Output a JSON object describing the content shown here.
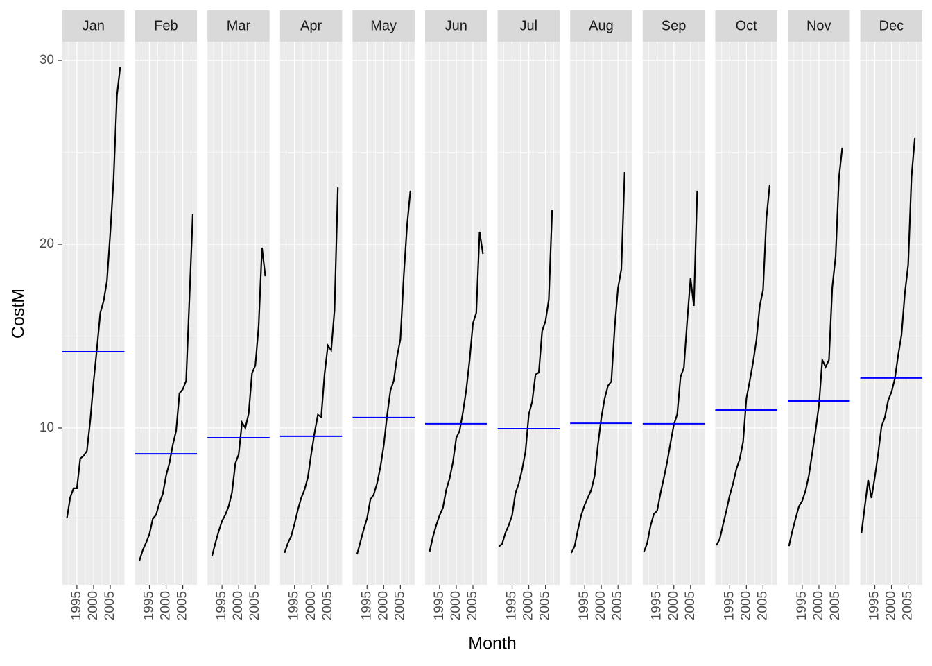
{
  "chart_data": {
    "type": "line",
    "xlabel": "Month",
    "ylabel": "CostM",
    "ylim": [
      1.47,
      31.02
    ],
    "yticks": [
      10,
      20,
      30
    ],
    "xlim": [
      1990.65,
      2009.26
    ],
    "xticks": [
      1995,
      2000,
      2005
    ],
    "grid": true,
    "color": "#000000",
    "mean_color": "#0000ff",
    "facets": [
      {
        "name": "Jan",
        "x": [
          1992,
          1993,
          1994,
          1995,
          1996,
          1997,
          1998,
          1999,
          2000,
          2001,
          2002,
          2003,
          2004,
          2005,
          2006,
          2007,
          2008
        ],
        "values": [
          5.09,
          6.23,
          6.72,
          6.72,
          8.34,
          8.49,
          8.75,
          10.42,
          12.53,
          14.34,
          16.26,
          16.91,
          18.0,
          20.6,
          23.55,
          28.08,
          29.66
        ],
        "mean": 14.15
      },
      {
        "name": "Feb",
        "x": [
          1992,
          1993,
          1994,
          1995,
          1996,
          1997,
          1998,
          1999,
          2000,
          2001,
          2002,
          2003,
          2004,
          2005,
          2006,
          2007,
          2008
        ],
        "values": [
          2.79,
          3.36,
          3.77,
          4.23,
          5.06,
          5.28,
          5.92,
          6.42,
          7.43,
          8.11,
          9.09,
          9.85,
          11.89,
          12.11,
          12.57,
          17.06,
          21.66
        ],
        "mean": 8.6
      },
      {
        "name": "Mar",
        "x": [
          1992,
          1993,
          1994,
          1995,
          1996,
          1997,
          1998,
          1999,
          2000,
          2001,
          2002,
          2003,
          2004,
          2005,
          2006,
          2007,
          2008
        ],
        "values": [
          3.02,
          3.74,
          4.38,
          4.94,
          5.28,
          5.74,
          6.49,
          8.08,
          8.57,
          10.3,
          10.0,
          10.79,
          12.98,
          13.4,
          15.55,
          19.81,
          18.26
        ],
        "mean": 9.47
      },
      {
        "name": "Apr",
        "x": [
          1992,
          1993,
          1994,
          1995,
          1996,
          1997,
          1998,
          1999,
          2000,
          2001,
          2002,
          2003,
          2004,
          2005,
          2006,
          2007,
          2008
        ],
        "values": [
          3.21,
          3.74,
          4.11,
          4.79,
          5.55,
          6.19,
          6.64,
          7.32,
          8.6,
          9.74,
          10.72,
          10.6,
          12.91,
          14.49,
          14.23,
          16.42,
          23.09
        ],
        "mean": 9.55
      },
      {
        "name": "May",
        "x": [
          1992,
          1993,
          1994,
          1995,
          1996,
          1997,
          1998,
          1999,
          2000,
          2001,
          2002,
          2003,
          2004,
          2005,
          2006,
          2007,
          2008
        ],
        "values": [
          3.13,
          3.81,
          4.49,
          5.09,
          6.11,
          6.38,
          6.98,
          7.89,
          9.06,
          10.68,
          12.04,
          12.57,
          13.89,
          14.83,
          18.26,
          21.02,
          22.91
        ],
        "mean": 10.57
      },
      {
        "name": "Jun",
        "x": [
          1992,
          1993,
          1994,
          1995,
          1996,
          1997,
          1998,
          1999,
          2000,
          2001,
          2002,
          2003,
          2004,
          2005,
          2006,
          2007,
          2008
        ],
        "values": [
          3.28,
          4.08,
          4.72,
          5.25,
          5.66,
          6.64,
          7.25,
          8.15,
          9.47,
          9.85,
          10.87,
          12.08,
          13.7,
          15.7,
          16.26,
          20.68,
          19.47
        ],
        "mean": 10.23
      },
      {
        "name": "Jul",
        "x": [
          1991,
          1992,
          1993,
          1994,
          1995,
          1996,
          1997,
          1998,
          1999,
          2000,
          2001,
          2002,
          2003,
          2004,
          2005,
          2006,
          2007
        ],
        "values": [
          3.55,
          3.7,
          4.3,
          4.72,
          5.25,
          6.45,
          6.98,
          7.74,
          8.72,
          10.75,
          11.43,
          12.91,
          13.02,
          15.28,
          15.81,
          16.98,
          21.85
        ],
        "mean": 9.96
      },
      {
        "name": "Aug",
        "x": [
          1991,
          1992,
          1993,
          1994,
          1995,
          1996,
          1997,
          1998,
          1999,
          2000,
          2001,
          2002,
          2003,
          2004,
          2005,
          2006,
          2007
        ],
        "values": [
          3.21,
          3.58,
          4.49,
          5.28,
          5.81,
          6.23,
          6.64,
          7.4,
          9.13,
          10.57,
          11.62,
          12.3,
          12.53,
          15.47,
          17.62,
          18.64,
          23.92
        ],
        "mean": 10.26
      },
      {
        "name": "Sep",
        "x": [
          1991,
          1992,
          1993,
          1994,
          1995,
          1996,
          1997,
          1998,
          1999,
          2000,
          2001,
          2002,
          2003,
          2004,
          2005,
          2006,
          2007
        ],
        "values": [
          3.25,
          3.74,
          4.68,
          5.32,
          5.51,
          6.45,
          7.28,
          8.15,
          9.21,
          10.19,
          10.75,
          12.79,
          13.28,
          15.85,
          18.15,
          16.64,
          22.91
        ],
        "mean": 10.23
      },
      {
        "name": "Oct",
        "x": [
          1991,
          1992,
          1993,
          1994,
          1995,
          1996,
          1997,
          1998,
          1999,
          2000,
          2001,
          2002,
          2003,
          2004,
          2005,
          2006,
          2007
        ],
        "values": [
          3.62,
          3.96,
          4.75,
          5.51,
          6.34,
          6.98,
          7.77,
          8.3,
          9.25,
          11.62,
          12.57,
          13.58,
          14.79,
          16.64,
          17.51,
          21.4,
          23.25
        ],
        "mean": 10.98
      },
      {
        "name": "Nov",
        "x": [
          1991,
          1992,
          1993,
          1994,
          1995,
          1996,
          1997,
          1998,
          1999,
          2000,
          2001,
          2002,
          2003,
          2004,
          2005,
          2006,
          2007
        ],
        "values": [
          3.58,
          4.38,
          5.09,
          5.74,
          6.04,
          6.6,
          7.43,
          8.64,
          9.89,
          11.25,
          13.7,
          13.32,
          13.7,
          17.66,
          19.32,
          23.62,
          25.25
        ],
        "mean": 11.47
      },
      {
        "name": "Dec",
        "x": [
          1991,
          1992,
          1993,
          1994,
          1995,
          1996,
          1997,
          1998,
          1999,
          2000,
          2001,
          2002,
          2003,
          2004,
          2005,
          2006,
          2007
        ],
        "values": [
          4.3,
          5.74,
          7.17,
          6.19,
          7.32,
          8.6,
          10.08,
          10.57,
          11.51,
          11.96,
          12.68,
          13.96,
          15.06,
          17.32,
          18.87,
          23.66,
          25.77
        ],
        "mean": 12.72
      }
    ]
  }
}
